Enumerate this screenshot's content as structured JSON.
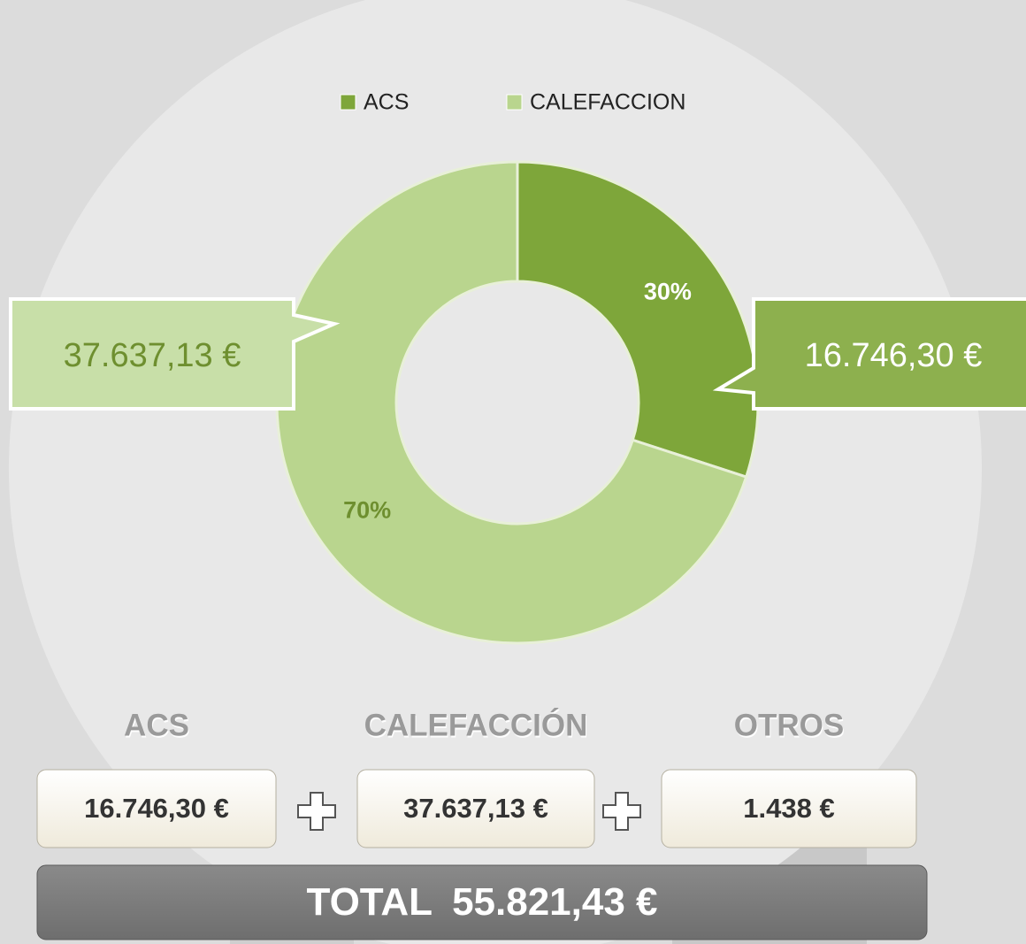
{
  "chart_data": {
    "type": "donut",
    "categories": [
      "ACS",
      "CALEFACCION"
    ],
    "values": [
      30,
      70
    ],
    "value_labels": [
      "30%",
      "70%"
    ],
    "colors": [
      "#7ea63a",
      "#b9d58e"
    ],
    "label_colors": [
      "#ffffff",
      "#6e8f2f"
    ],
    "legend": "top",
    "annotations": [
      "16.746,30 €",
      "37.637,13 €"
    ]
  },
  "summary": {
    "headers": [
      "ACS",
      "CALEFACCIÓN",
      "OTROS"
    ],
    "amounts": [
      "16.746,30 €",
      "37.637,13 €",
      "1.438 €"
    ],
    "total_label": "TOTAL",
    "total": "55.821,43 €"
  }
}
